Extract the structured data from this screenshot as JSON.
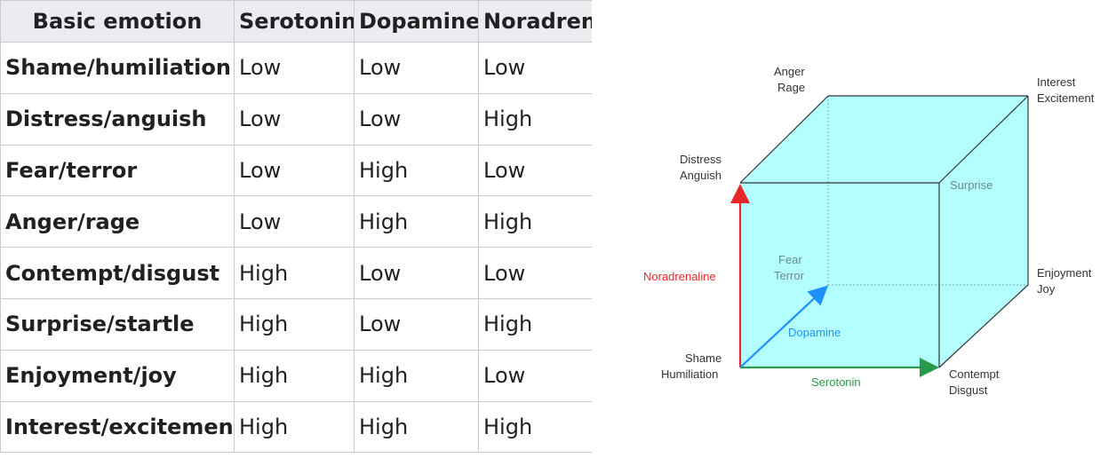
{
  "table": {
    "headers": [
      "Basic emotion",
      "Serotonin",
      "Dopamine",
      "Noradrenaline"
    ],
    "rows": [
      [
        "Shame/humiliation",
        "Low",
        "Low",
        "Low"
      ],
      [
        "Distress/anguish",
        "Low",
        "Low",
        "High"
      ],
      [
        "Fear/terror",
        "Low",
        "High",
        "Low"
      ],
      [
        "Anger/rage",
        "Low",
        "High",
        "High"
      ],
      [
        "Contempt/disgust",
        "High",
        "Low",
        "Low"
      ],
      [
        "Surprise/startle",
        "High",
        "Low",
        "High"
      ],
      [
        "Enjoyment/joy",
        "High",
        "High",
        "Low"
      ],
      [
        "Interest/excitement",
        "High",
        "High",
        "High"
      ]
    ]
  },
  "cube": {
    "fill_color": "#b3ffff",
    "axes": {
      "noradrenaline": {
        "label": "Noradrenaline",
        "color": "#e8262b"
      },
      "dopamine": {
        "label": "Dopamine",
        "color": "#1e90ff"
      },
      "serotonin": {
        "label": "Serotonin",
        "color": "#2a9a4a"
      }
    },
    "corners": {
      "anger_rage": [
        "Anger",
        "Rage"
      ],
      "interest_excitement": [
        "Interest",
        "Excitement"
      ],
      "distress_anguish": [
        "Distress",
        "Anguish"
      ],
      "surprise": [
        "Surprise"
      ],
      "fear_terror": [
        "Fear",
        "Terror"
      ],
      "enjoyment_joy": [
        "Enjoyment",
        "Joy"
      ],
      "shame_humiliation": [
        "Shame",
        "Humiliation"
      ],
      "contempt_disgust": [
        "Contempt",
        "Disgust"
      ]
    }
  }
}
